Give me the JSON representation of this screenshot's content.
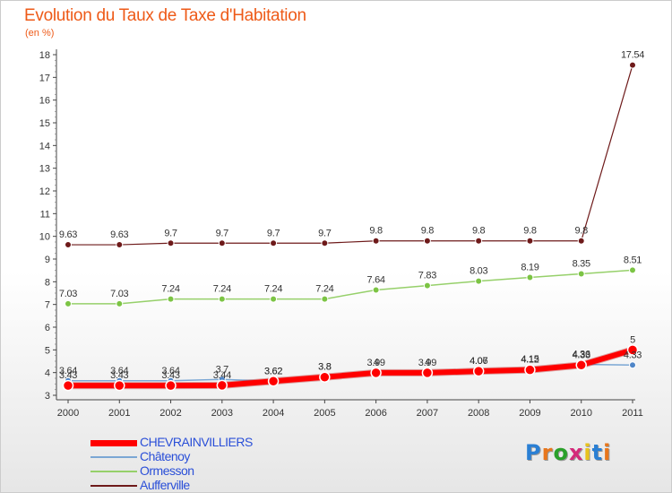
{
  "title": "Evolution du Taux de Taxe d'Habitation",
  "subtitle": "(en %)",
  "brand": {
    "text": "Proxiti",
    "letter_colors": [
      "#2a7fd4",
      "#e8761c",
      "#2aa02a",
      "#d42a7a",
      "#e8c21c",
      "#2a7fd4",
      "#e8761c"
    ]
  },
  "chart_data": {
    "type": "line",
    "x": [
      "2000",
      "2001",
      "2002",
      "2003",
      "2004",
      "2005",
      "2006",
      "2007",
      "2008",
      "2009",
      "2010",
      "2011"
    ],
    "ylim": [
      3,
      18
    ],
    "yticks": [
      "3",
      "4",
      "5",
      "6",
      "7",
      "8",
      "9",
      "10",
      "11",
      "12",
      "13",
      "14",
      "15",
      "16",
      "17",
      "18"
    ],
    "grid": false,
    "legend_position": "bottom-left",
    "series": [
      {
        "name": "Aufferville",
        "color": "#6e1a1a",
        "marker": "#6e1a1a",
        "width": 1.2,
        "values": [
          9.63,
          9.63,
          9.7,
          9.7,
          9.7,
          9.7,
          9.8,
          9.8,
          9.8,
          9.8,
          9.8,
          17.54
        ],
        "labels": [
          "9.63",
          "9.63",
          "9.7",
          "9.7",
          "9.7",
          "9.7",
          "9.8",
          "9.8",
          "9.8",
          "9.8",
          "9.8",
          "17.54"
        ]
      },
      {
        "name": "Ormesson",
        "color": "#96d06a",
        "marker": "#7cc444",
        "width": 1.5,
        "values": [
          7.03,
          7.03,
          7.24,
          7.24,
          7.24,
          7.24,
          7.64,
          7.83,
          8.03,
          8.19,
          8.35,
          8.51
        ],
        "labels": [
          "7.03",
          "7.03",
          "7.24",
          "7.24",
          "7.24",
          "7.24",
          "7.64",
          "7.83",
          "8.03",
          "8.19",
          "8.35",
          "8.51"
        ]
      },
      {
        "name": "Châtenoy",
        "color": "#7ba7d4",
        "marker": "#4f86c8",
        "width": 1.5,
        "values": [
          3.64,
          3.64,
          3.64,
          3.7,
          3.62,
          3.8,
          4.0,
          4.0,
          4.07,
          4.15,
          4.36,
          4.33
        ],
        "labels": [
          "3.64",
          "3.64",
          "3.64",
          "3.7",
          "3.62",
          "3.8",
          "4",
          "4",
          "4.07",
          "4.15",
          "4.36",
          "4.33"
        ]
      },
      {
        "name": "CHEVRAINVILLIERS",
        "color": "#ff0000",
        "marker": "#ff0000",
        "width": 6,
        "values": [
          3.43,
          3.43,
          3.43,
          3.44,
          3.62,
          3.8,
          3.99,
          3.99,
          4.06,
          4.12,
          4.33,
          5.0
        ],
        "labels": [
          "3.43",
          "3.43",
          "3.43",
          "3.44",
          "3.62",
          "3.8",
          "3.99",
          "3.99",
          "4.06",
          "4.12",
          "4.33",
          "5"
        ]
      }
    ],
    "legend_order": [
      "CHEVRAINVILLIERS",
      "Châtenoy",
      "Ormesson",
      "Aufferville"
    ]
  }
}
